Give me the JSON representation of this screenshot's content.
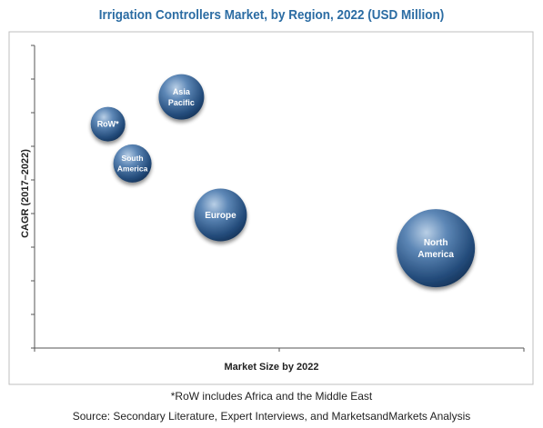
{
  "chart_data": {
    "type": "scatter",
    "title": "Irrigation Controllers Market, by Region, 2022 (USD Million)",
    "xlabel": "Market Size by 2022",
    "ylabel": "CAGR (2017–2022)",
    "xlim": [
      0,
      100
    ],
    "ylim": [
      0,
      100
    ],
    "grid": false,
    "points": [
      {
        "label": [
          "Asia",
          "Pacific"
        ],
        "x": 30,
        "y": 83,
        "size": 25,
        "font": 9
      },
      {
        "label": [
          "RoW*"
        ],
        "x": 15,
        "y": 74,
        "size": 19,
        "font": 9
      },
      {
        "label": [
          "South",
          "America"
        ],
        "x": 20,
        "y": 61,
        "size": 21,
        "font": 8.5
      },
      {
        "label": [
          "Europe"
        ],
        "x": 38,
        "y": 44,
        "size": 29,
        "font": 10
      },
      {
        "label": [
          "North",
          "America"
        ],
        "x": 82,
        "y": 33,
        "size": 43,
        "font": 10
      }
    ]
  },
  "footer": {
    "note": "*RoW includes Africa and the Middle East",
    "source": "Source: Secondary Literature, Expert Interviews, and MarketsandMarkets Analysis"
  }
}
